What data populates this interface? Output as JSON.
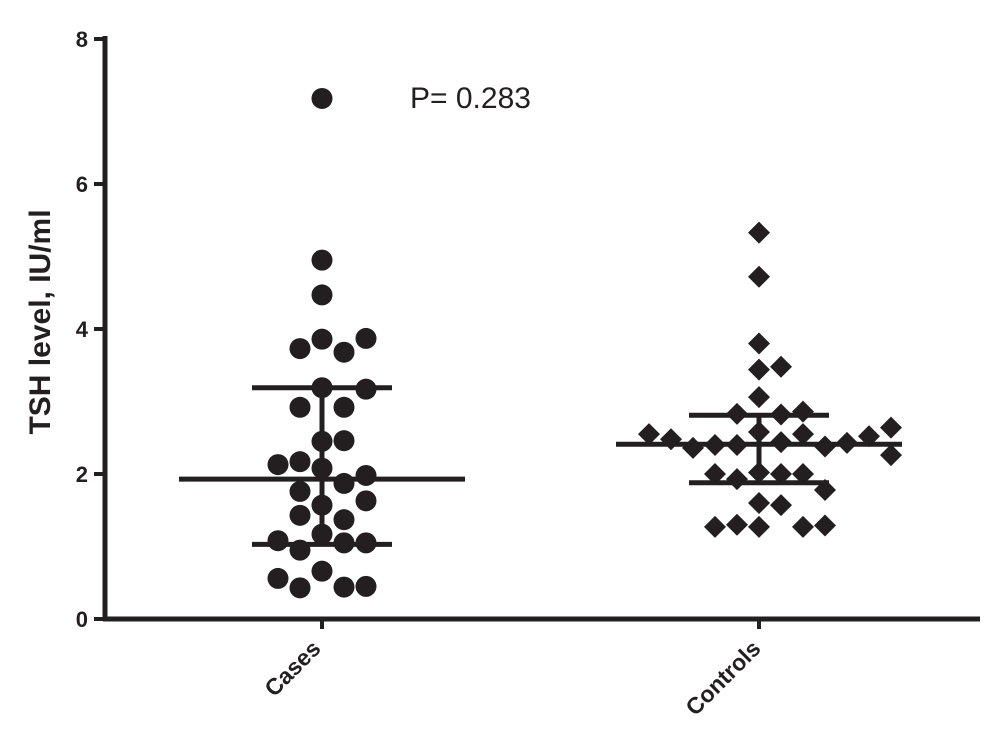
{
  "chart_data": {
    "type": "scatter",
    "title": "",
    "xlabel": "",
    "ylabel": "TSH  level, IU/ml",
    "ylim": [
      0,
      8
    ],
    "yticks": [
      0,
      2,
      4,
      6,
      8
    ],
    "grid": false,
    "annotation": "P= 0.283",
    "categories": [
      "Cases",
      "Controls"
    ],
    "series": [
      {
        "category": "Cases",
        "marker": "circle",
        "color": "#231f20",
        "mean": 1.93,
        "sd_low": 1.03,
        "sd_high": 3.19,
        "values": [
          7.18,
          4.95,
          4.47,
          3.86,
          3.68,
          3.73,
          3.87,
          3.19,
          2.92,
          2.92,
          3.17,
          2.45,
          2.46,
          2.17,
          2.08,
          1.87,
          1.98,
          2.13,
          1.57,
          1.37,
          1.43,
          1.76,
          1.63,
          1.17,
          1.05,
          0.95,
          1.05,
          1.08,
          0.66,
          0.44,
          0.43,
          0.45,
          0.56
        ]
      },
      {
        "category": "Controls",
        "marker": "diamond",
        "color": "#231f20",
        "mean": 2.41,
        "sd_low": 1.88,
        "sd_high": 2.81,
        "values": [
          5.33,
          4.72,
          3.8,
          3.44,
          3.48,
          3.06,
          2.82,
          2.83,
          2.86,
          2.58,
          2.55,
          2.44,
          2.4,
          2.4,
          2.38,
          2.36,
          2.43,
          2.48,
          2.52,
          2.55,
          2.64,
          2.02,
          2.0,
          1.93,
          2.26,
          2.0,
          2.0,
          1.78,
          1.6,
          1.57,
          1.3,
          1.27,
          1.27,
          1.27,
          1.29
        ]
      }
    ]
  }
}
